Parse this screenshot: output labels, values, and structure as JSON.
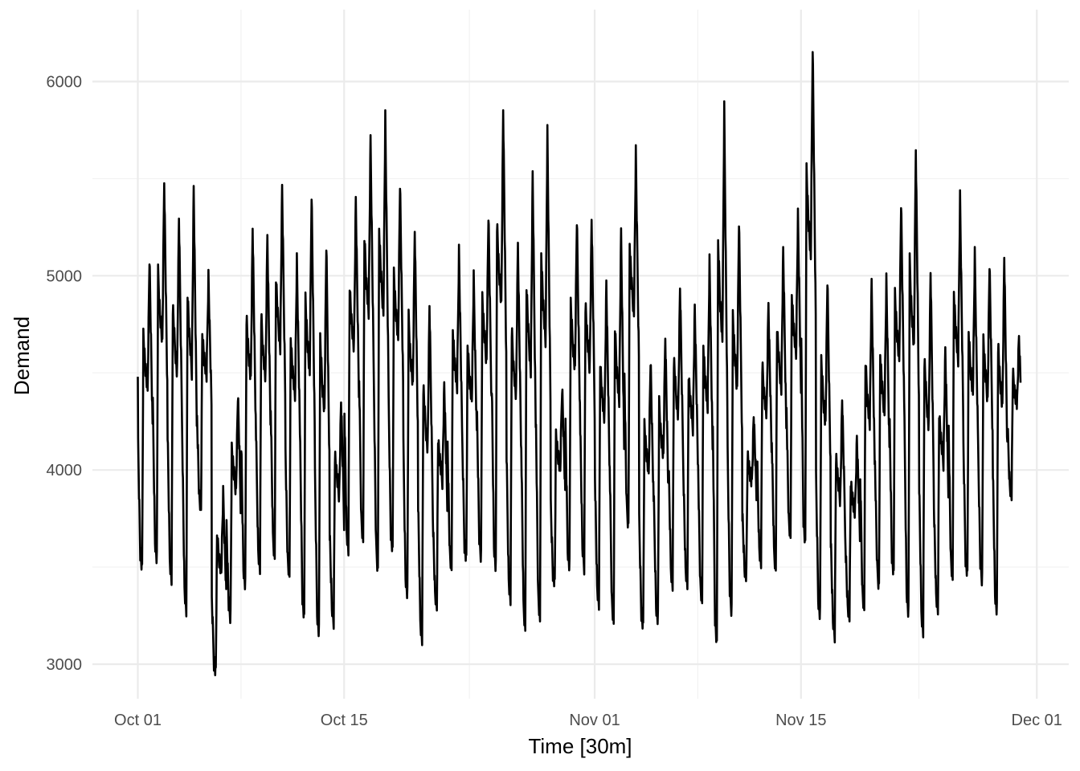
{
  "chart_data": {
    "type": "line",
    "xlabel": "Time [30m]",
    "ylabel": "Demand",
    "x_range": [
      "2012-10-01",
      "2012-11-29"
    ],
    "ylim": [
      2850,
      6300
    ],
    "y_ticks": [
      3000,
      4000,
      5000,
      6000
    ],
    "x_ticks": [
      {
        "date": "2012-10-01",
        "label": "Oct 01"
      },
      {
        "date": "2012-10-15",
        "label": "Oct 15"
      },
      {
        "date": "2012-11-01",
        "label": "Nov 01"
      },
      {
        "date": "2012-11-15",
        "label": "Nov 15"
      },
      {
        "date": "2012-12-01",
        "label": "Dec 01"
      }
    ],
    "grid": true,
    "series": [
      {
        "color": "#000000",
        "x": [
          "2012-10-01",
          "2012-10-02",
          "2012-10-03",
          "2012-10-04",
          "2012-10-05",
          "2012-10-06",
          "2012-10-07",
          "2012-10-08",
          "2012-10-09",
          "2012-10-10",
          "2012-10-11",
          "2012-10-12",
          "2012-10-13",
          "2012-10-14",
          "2012-10-15",
          "2012-10-16",
          "2012-10-17",
          "2012-10-18",
          "2012-10-19",
          "2012-10-20",
          "2012-10-21",
          "2012-10-22",
          "2012-10-23",
          "2012-10-24",
          "2012-10-25",
          "2012-10-26",
          "2012-10-27",
          "2012-10-28",
          "2012-10-29",
          "2012-10-30",
          "2012-10-31",
          "2012-11-01",
          "2012-11-02",
          "2012-11-03",
          "2012-11-04",
          "2012-11-05",
          "2012-11-06",
          "2012-11-07",
          "2012-11-08",
          "2012-11-09",
          "2012-11-10",
          "2012-11-11",
          "2012-11-12",
          "2012-11-13",
          "2012-11-14",
          "2012-11-15",
          "2012-11-16",
          "2012-11-17",
          "2012-11-18",
          "2012-11-19",
          "2012-11-20",
          "2012-11-21",
          "2012-11-22",
          "2012-11-23",
          "2012-11-24",
          "2012-11-25",
          "2012-11-26",
          "2012-11-27",
          "2012-11-28",
          "2012-11-29"
        ],
        "peak": [
          5100,
          5500,
          5300,
          5450,
          5000,
          3870,
          4390,
          5260,
          5210,
          5450,
          5080,
          5440,
          5160,
          4360,
          5400,
          5700,
          5810,
          5490,
          5250,
          4850,
          4440,
          5130,
          4980,
          5320,
          5870,
          5170,
          5520,
          5740,
          4440,
          5290,
          5300,
          4970,
          5220,
          5630,
          4580,
          4700,
          4940,
          4840,
          5080,
          5850,
          5290,
          4290,
          4860,
          5130,
          5310,
          6200,
          4980,
          4370,
          4170,
          4960,
          4970,
          5390,
          5670,
          5020,
          4620,
          5410,
          5100,
          5070,
          5110,
          4690
        ],
        "trough": [
          3490,
          3540,
          3450,
          3270,
          3800,
          2970,
          3250,
          3400,
          3500,
          3560,
          3450,
          3240,
          3170,
          3230,
          3590,
          3640,
          3490,
          3580,
          3360,
          3140,
          3300,
          3490,
          3550,
          3560,
          3490,
          3340,
          3190,
          3220,
          3420,
          3510,
          3510,
          3310,
          3220,
          3720,
          3190,
          3230,
          3420,
          3410,
          3320,
          3110,
          3280,
          3450,
          3530,
          3500,
          3650,
          3620,
          3260,
          3160,
          3250,
          3290,
          3410,
          3460,
          3260,
          3180,
          3280,
          3440,
          3470,
          3440,
          3270,
          3880
        ]
      }
    ]
  }
}
